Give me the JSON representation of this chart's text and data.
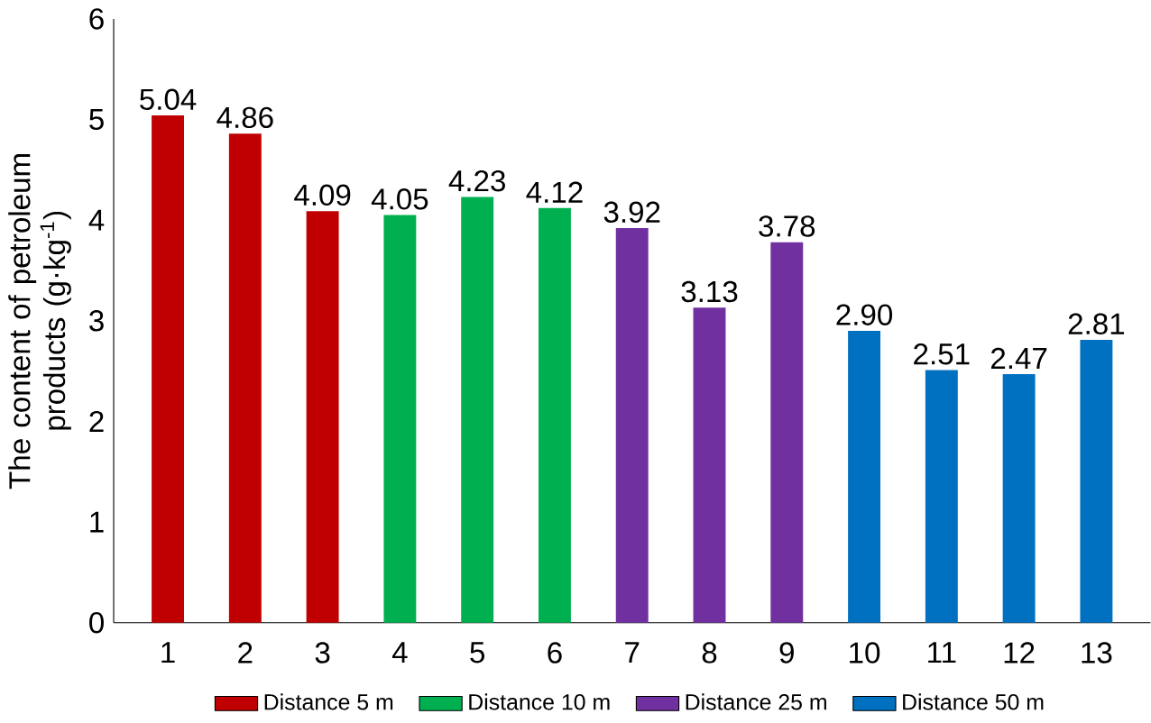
{
  "chart_data": {
    "type": "bar",
    "ylabel": "The content of petroleum products (g·kg$^{-1}$)",
    "categories": [
      "1",
      "2",
      "3",
      "4",
      "5",
      "6",
      "7",
      "8",
      "9",
      "10",
      "11",
      "12",
      "13"
    ],
    "series": [
      {
        "name": "Distance 5 m",
        "color": "#c00000",
        "values": [
          5.04,
          4.86,
          4.09,
          null,
          null,
          null,
          null,
          null,
          null,
          null,
          null,
          null,
          null
        ],
        "value_labels": [
          "5.04",
          "4.86",
          "4.09",
          null,
          null,
          null,
          null,
          null,
          null,
          null,
          null,
          null,
          null
        ]
      },
      {
        "name": "Distance 10  m",
        "color": "#00b050",
        "values": [
          null,
          null,
          null,
          4.05,
          4.23,
          4.12,
          null,
          null,
          null,
          null,
          null,
          null,
          null
        ],
        "value_labels": [
          null,
          null,
          null,
          "4.05",
          "4.23",
          "4.12",
          null,
          null,
          null,
          null,
          null,
          null,
          null
        ]
      },
      {
        "name": "Distance 25 m",
        "color": "#7030a0",
        "values": [
          null,
          null,
          null,
          null,
          null,
          null,
          3.92,
          3.13,
          3.78,
          null,
          null,
          null,
          null
        ],
        "value_labels": [
          null,
          null,
          null,
          null,
          null,
          null,
          "3.92",
          "3.13",
          "3.78",
          null,
          null,
          null,
          null
        ]
      },
      {
        "name": "Distance 50 m",
        "color": "#0070c0",
        "values": [
          null,
          null,
          null,
          null,
          null,
          null,
          null,
          null,
          null,
          2.9,
          2.51,
          2.47,
          2.81
        ],
        "value_labels": [
          null,
          null,
          null,
          null,
          null,
          null,
          null,
          null,
          null,
          "2.90",
          "2.51",
          "2.47",
          "2.81"
        ]
      }
    ],
    "ylim": [
      0,
      6
    ],
    "yticks": [
      0,
      1,
      2,
      3,
      4,
      5,
      6
    ],
    "grid": false,
    "legend": "bottom"
  }
}
